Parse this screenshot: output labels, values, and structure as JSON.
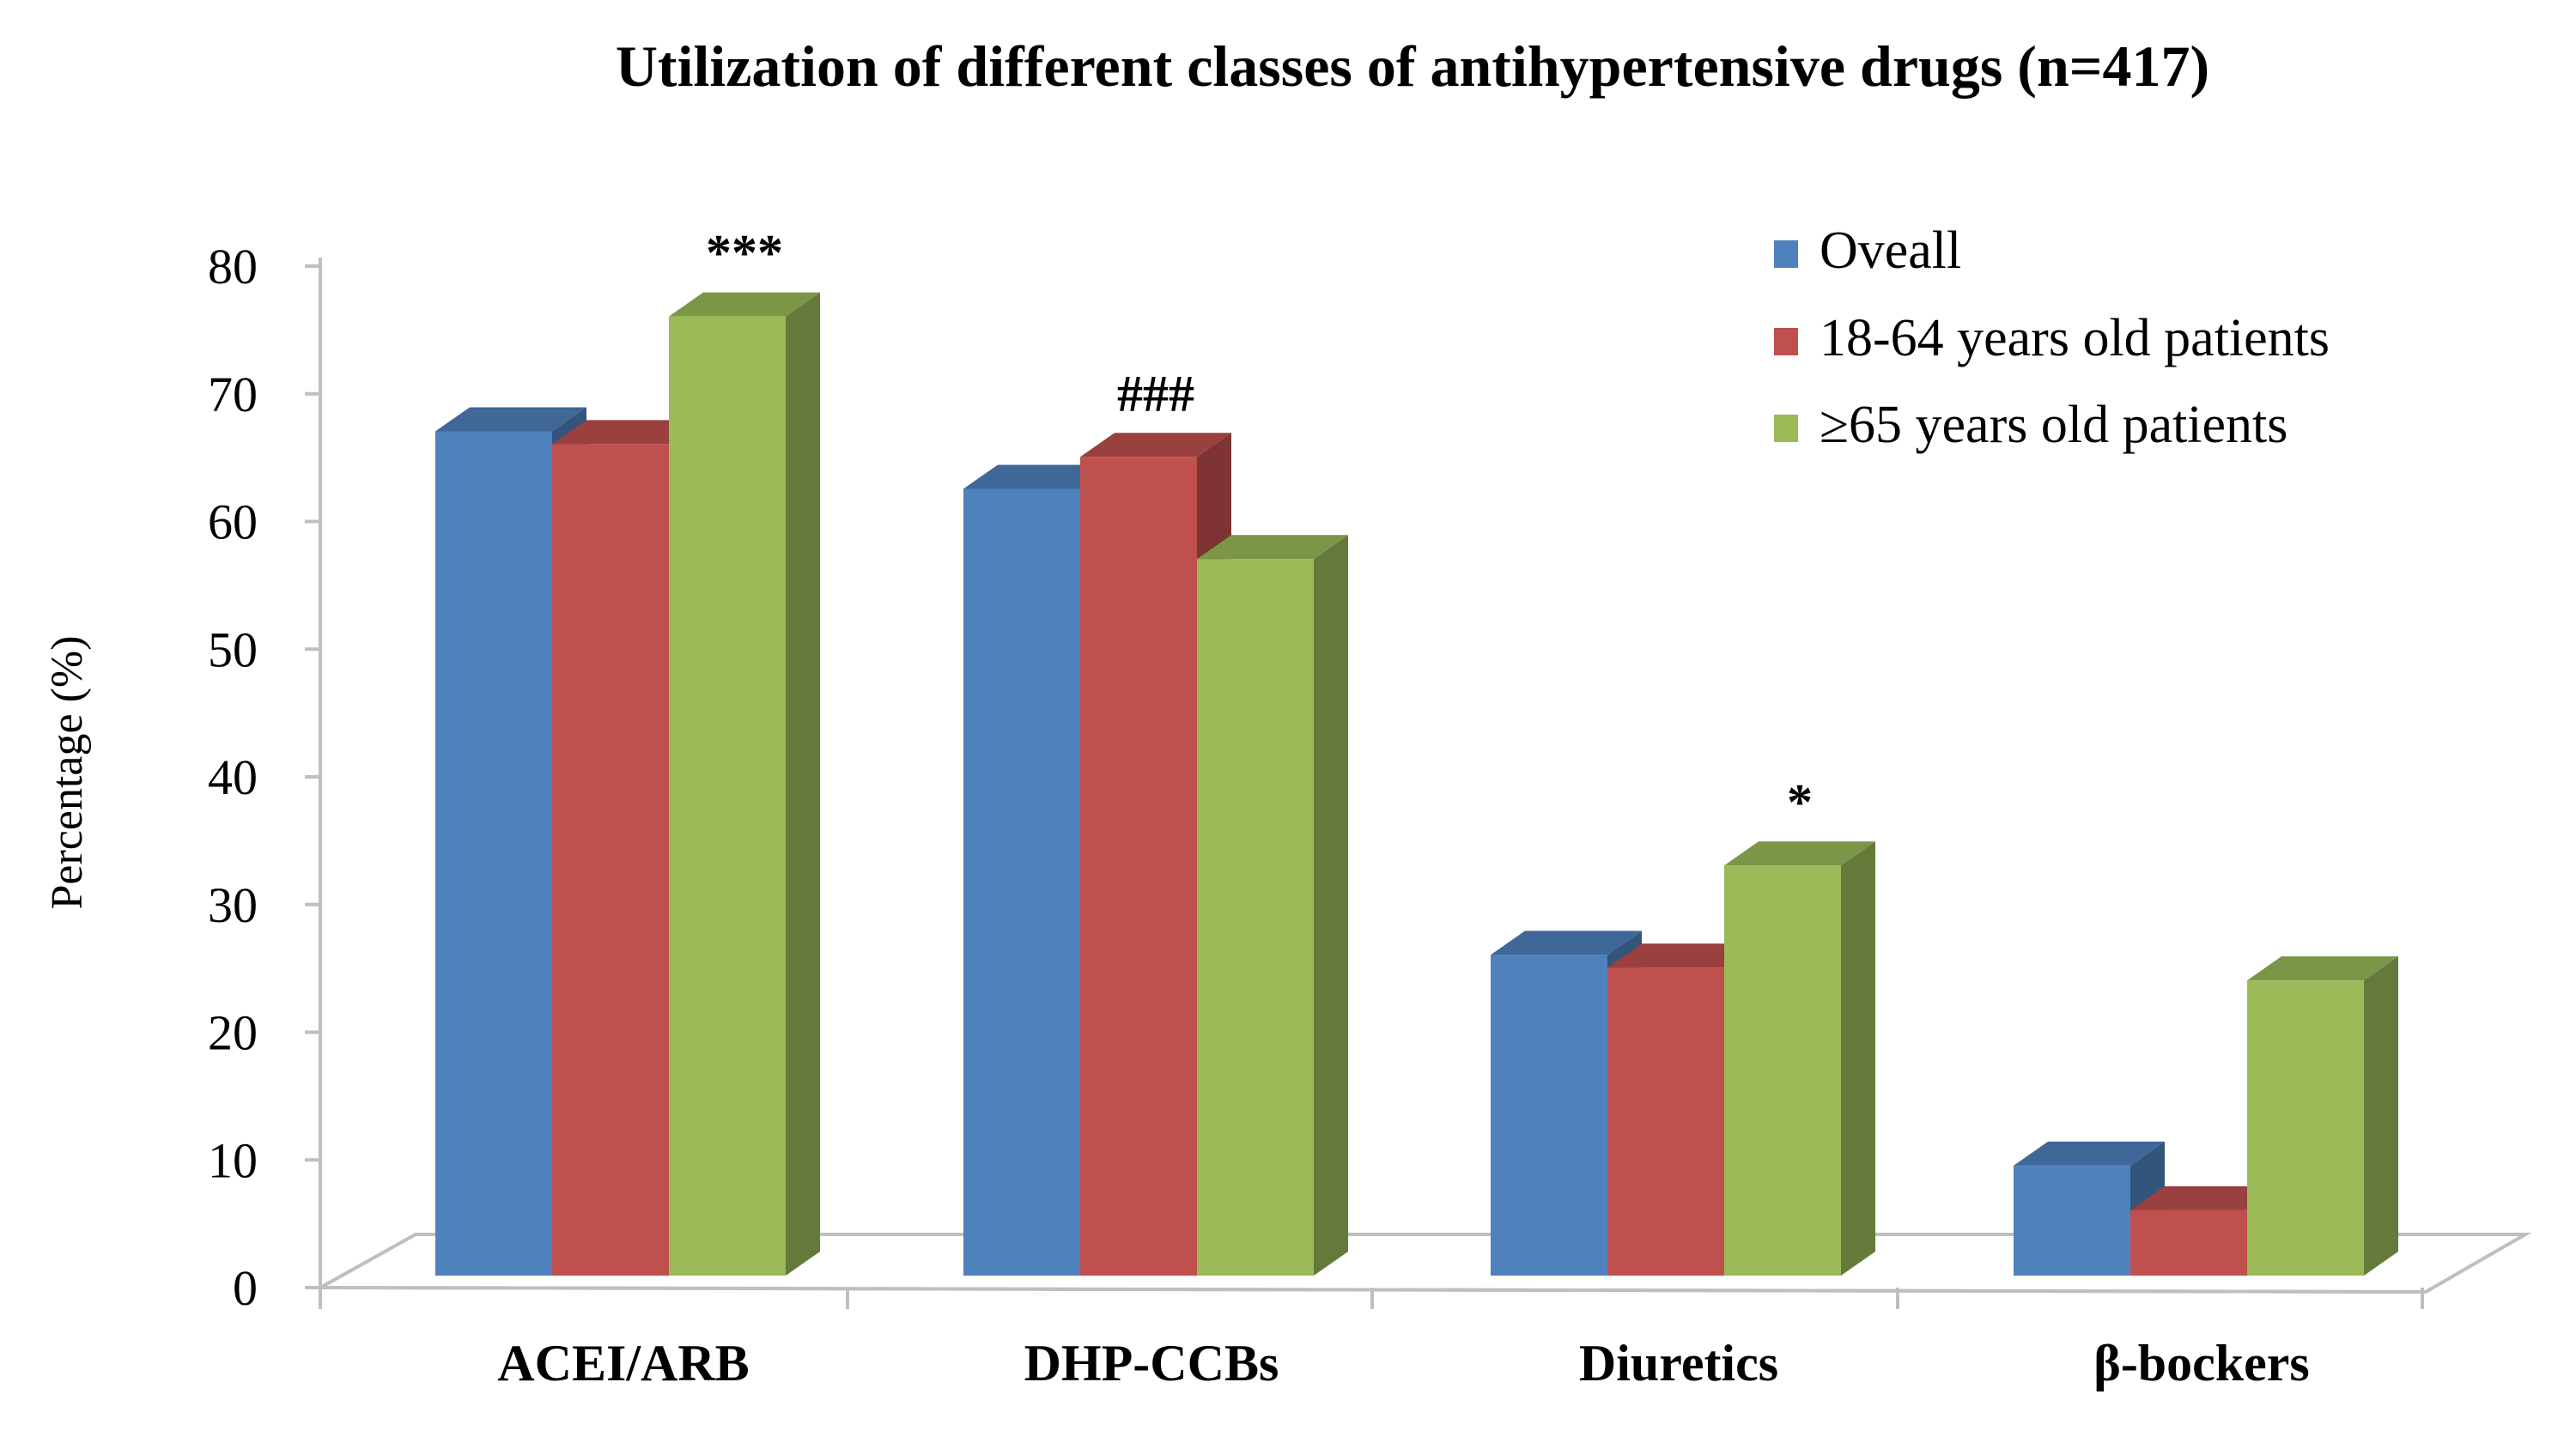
{
  "chart_data": {
    "type": "bar",
    "title": "Utilization of different classes of antihypertensive drugs (n=417)",
    "xlabel": "",
    "ylabel": "Percentage (%)",
    "ylim": [
      0,
      80
    ],
    "yticks": [
      "0",
      "10",
      "20",
      "30",
      "40",
      "50",
      "60",
      "70",
      "80"
    ],
    "categories": [
      "ACEI/ARB",
      "DHP-CCBs",
      "Diuretics",
      "β-bockers"
    ],
    "series": [
      {
        "name": "Oveall",
        "color": "#4f81bd",
        "values": [
          68,
          63.5,
          27,
          10.5
        ]
      },
      {
        "name": "18-64 years old patients",
        "color": "#c0504d",
        "values": [
          67,
          66,
          26,
          7
        ]
      },
      {
        "name": "≥65 years old patients",
        "color": "#9bbb59",
        "values": [
          77,
          58,
          34,
          25
        ]
      }
    ],
    "annotations": [
      {
        "category": "ACEI/ARB",
        "series": 2,
        "text": "***"
      },
      {
        "category": "DHP-CCBs",
        "series": 1,
        "text": "###"
      },
      {
        "category": "Diuretics",
        "series": 2,
        "text": "*"
      }
    ],
    "legend_position": "top-right",
    "grid": false,
    "style": "3d-clustered-column"
  }
}
